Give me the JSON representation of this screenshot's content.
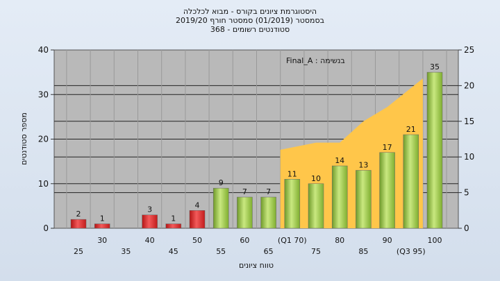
{
  "chart_data": {
    "type": "bar",
    "title_lines": [
      "היסטוגרמת ציונים בקורס - מבוא לכלכלה",
      "בסמסטר  (01/2019)  סמסטר חורף 2019/20",
      "סטודנטים רשומים - 368"
    ],
    "annotation": "בנשימה : Final_A",
    "categories": [
      "25",
      "30",
      "35",
      "40",
      "45",
      "50",
      "55",
      "60",
      "65",
      "(Q1 70)",
      "75",
      "80",
      "85",
      "90",
      "(Q3 95)",
      "100"
    ],
    "values": [
      2,
      1,
      0,
      3,
      1,
      4,
      9,
      7,
      7,
      11,
      10,
      14,
      13,
      17,
      21,
      35
    ],
    "value_labels": [
      "2",
      "1",
      "",
      "3",
      "1",
      "4",
      "9",
      "7",
      "7",
      "11",
      "10",
      "14",
      "13",
      "17",
      "21",
      "35"
    ],
    "bar_colors": [
      "red",
      "red",
      "red",
      "red",
      "red",
      "red",
      "green",
      "green",
      "green",
      "green",
      "green",
      "green",
      "green",
      "green",
      "green",
      "green"
    ],
    "cumulative_area": {
      "from_category": "(Q1 70)",
      "to_category": "(Q3 95)",
      "values": [
        11,
        12,
        12,
        15,
        17,
        21
      ]
    },
    "ylabel": "מספר סטודנטים",
    "xlabel": "טווח ציונים",
    "ylim": [
      0,
      40
    ],
    "yticks": [
      0,
      10,
      20,
      30,
      40
    ],
    "y2lim": [
      0,
      25
    ],
    "y2ticks": [
      0,
      5,
      10,
      15,
      20,
      25
    ],
    "grid": true,
    "colors": {
      "plot_bg": "#b9b9b9",
      "red": "#dd2222",
      "green": "#8fbf3a",
      "area": "#ffc64a"
    }
  }
}
